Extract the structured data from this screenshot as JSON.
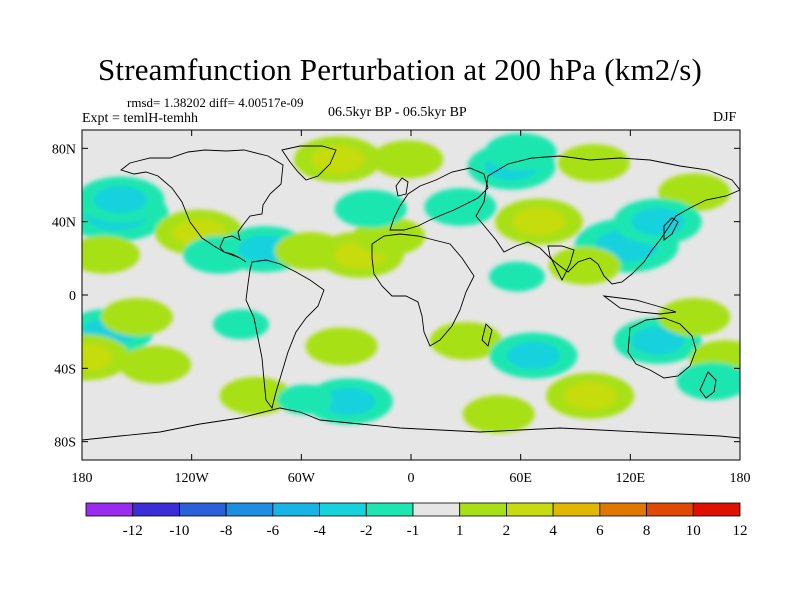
{
  "figure": {
    "title": "Streamfunction Perturbation at 200 hPa (km2/s)",
    "stats": "rmsd= 1.38202 diff= 4.00517e-09",
    "expt": "Expt = temlH-temhh",
    "period": "06.5kyr BP - 06.5kyr BP",
    "season": "DJF"
  },
  "chart_data": {
    "type": "filled-contour-map",
    "projection": "equidistant-cylindrical",
    "variable": "streamfunction perturbation",
    "level": "200 hPa",
    "units": "km2/s",
    "lat_range": [
      -90,
      90
    ],
    "lon_range": [
      -180,
      180
    ],
    "y_ticks": [
      {
        "lat": 80,
        "label": "80N"
      },
      {
        "lat": 40,
        "label": "40N"
      },
      {
        "lat": 0,
        "label": "0"
      },
      {
        "lat": -40,
        "label": "40S"
      },
      {
        "lat": -80,
        "label": "80S"
      }
    ],
    "x_ticks": [
      {
        "lon": -180,
        "label": "180"
      },
      {
        "lon": -120,
        "label": "120W"
      },
      {
        "lon": -60,
        "label": "60W"
      },
      {
        "lon": 0,
        "label": "0"
      },
      {
        "lon": 60,
        "label": "60E"
      },
      {
        "lon": 120,
        "label": "120E"
      },
      {
        "lon": 180,
        "label": "180"
      }
    ],
    "colorbar": {
      "boundaries": [
        "-12",
        "-10",
        "-8",
        "-6",
        "-4",
        "-2",
        "-1",
        "1",
        "2",
        "4",
        "6",
        "8",
        "10",
        "12"
      ],
      "colors": [
        "#9a2cf0",
        "#3a2ed8",
        "#2a60d8",
        "#1e8ee0",
        "#18b4e6",
        "#16d2dc",
        "#1ee6b0",
        "#e6e6e6",
        "#a8e018",
        "#c6dc10",
        "#e0b800",
        "#e07800",
        "#e04a00",
        "#e01000"
      ]
    },
    "anomalies": [
      {
        "lon": -161,
        "lat": 44,
        "value": -4
      },
      {
        "lon": -159,
        "lat": 52,
        "value": -3
      },
      {
        "lon": -168,
        "lat": 22,
        "value": 2
      },
      {
        "lon": -116,
        "lat": 34,
        "value": 3
      },
      {
        "lon": -105,
        "lat": 22,
        "value": -2
      },
      {
        "lon": -80,
        "lat": 25,
        "value": -3
      },
      {
        "lon": -55,
        "lat": 24,
        "value": 2
      },
      {
        "lon": -28,
        "lat": 22,
        "value": 3
      },
      {
        "lon": -12,
        "lat": 32,
        "value": 2
      },
      {
        "lon": -40,
        "lat": 74,
        "value": 3
      },
      {
        "lon": -2,
        "lat": 74,
        "value": 2
      },
      {
        "lon": 55,
        "lat": 70,
        "value": -3
      },
      {
        "lon": 60,
        "lat": 78,
        "value": -2
      },
      {
        "lon": 100,
        "lat": 72,
        "value": 2
      },
      {
        "lon": 155,
        "lat": 56,
        "value": 2
      },
      {
        "lon": -22,
        "lat": 47,
        "value": -2
      },
      {
        "lon": 27,
        "lat": 48,
        "value": -2
      },
      {
        "lon": 70,
        "lat": 40,
        "value": 3
      },
      {
        "lon": 118,
        "lat": 27,
        "value": -4
      },
      {
        "lon": 135,
        "lat": 40,
        "value": -3
      },
      {
        "lon": 95,
        "lat": 16,
        "value": 2
      },
      {
        "lon": 58,
        "lat": 10,
        "value": -1
      },
      {
        "lon": -165,
        "lat": -20,
        "value": -3
      },
      {
        "lon": -150,
        "lat": -12,
        "value": 2
      },
      {
        "lon": -178,
        "lat": -34,
        "value": 3
      },
      {
        "lon": -140,
        "lat": -38,
        "value": 2
      },
      {
        "lon": -93,
        "lat": -16,
        "value": -1
      },
      {
        "lon": -38,
        "lat": -28,
        "value": 2
      },
      {
        "lon": -34,
        "lat": -58,
        "value": -3
      },
      {
        "lon": -85,
        "lat": -55,
        "value": 2
      },
      {
        "lon": -58,
        "lat": -57,
        "value": -1
      },
      {
        "lon": 30,
        "lat": -25,
        "value": 2
      },
      {
        "lon": 67,
        "lat": -33,
        "value": -3
      },
      {
        "lon": 98,
        "lat": -55,
        "value": 3
      },
      {
        "lon": 48,
        "lat": -65,
        "value": 2
      },
      {
        "lon": 135,
        "lat": -25,
        "value": -3
      },
      {
        "lon": 155,
        "lat": -12,
        "value": 2
      },
      {
        "lon": 172,
        "lat": -35,
        "value": 2
      },
      {
        "lon": 165,
        "lat": -47,
        "value": -2
      }
    ]
  }
}
